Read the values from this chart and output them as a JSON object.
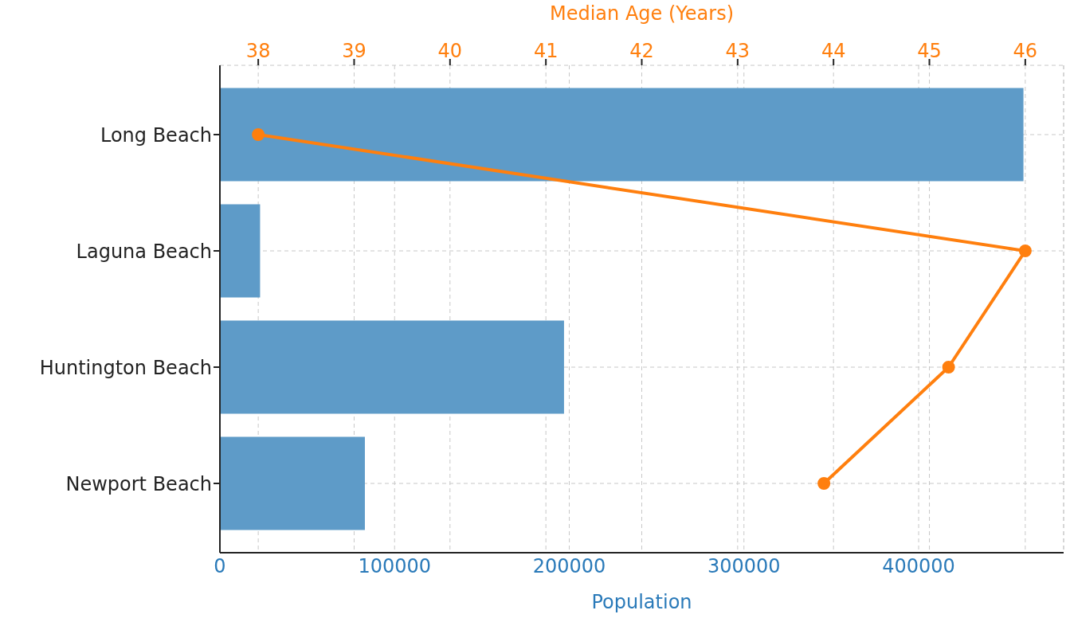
{
  "chart_data": {
    "type": "bar",
    "orientation": "horizontal",
    "xlabel": "Population",
    "x2label": "Median Age (Years)",
    "categories": [
      "Long Beach",
      "Laguna Beach",
      "Huntington Beach",
      "Newport Beach"
    ],
    "series": [
      {
        "color": "#5e9bc8",
        "values": [
          460000,
          23000,
          197000,
          83000
        ]
      },
      {
        "type": "line",
        "axis": "x2",
        "color": "#ff7f0e",
        "marker": "circle",
        "line_style": "solid",
        "values": [
          38.0,
          46.0,
          45.2,
          43.9
        ]
      }
    ],
    "xlim": [
      0,
      483000
    ],
    "xticks": [
      0,
      100000,
      200000,
      300000,
      400000
    ],
    "x2lim": [
      37.6,
      46.4
    ],
    "x2ticks": [
      38,
      39,
      40,
      41,
      42,
      43,
      44,
      45,
      46
    ],
    "grid": true
  }
}
